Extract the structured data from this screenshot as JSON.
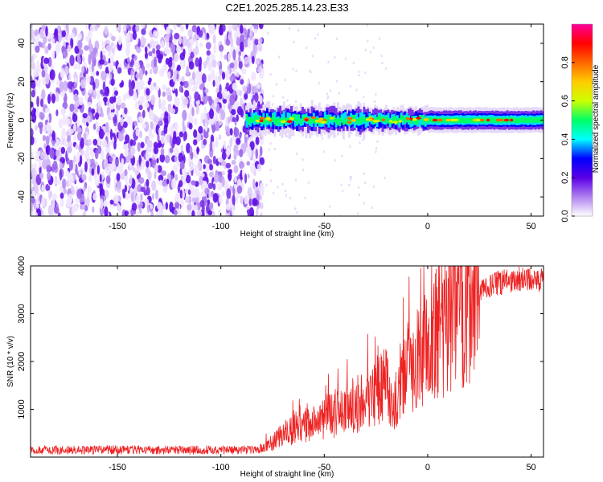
{
  "title": "C2E1.2025.285.14.23.E33",
  "chart_data": [
    {
      "type": "heatmap",
      "name": "spectrogram",
      "xlabel": "Height of straight line (km)",
      "ylabel": "Frequency (Hz)",
      "xlim": [
        -192,
        56
      ],
      "ylim": [
        -50,
        50
      ],
      "xticks": [
        -150,
        -100,
        -50,
        0,
        50
      ],
      "yticks": [
        -40,
        -20,
        0,
        20,
        40
      ],
      "noise_region_x": [
        -192,
        -80
      ],
      "signal_region_x": [
        -88,
        56
      ],
      "signal_center_hz": 0,
      "signal_halfwidth_hz": 3,
      "colorbar": {
        "label": "Normalized spectral amplitude",
        "range": [
          0,
          1
        ],
        "ticks": [
          0.0,
          0.2,
          0.4,
          0.6,
          0.8
        ],
        "tick_labels": [
          "0.0",
          "0.2",
          "0.4",
          "0.6",
          "0.8"
        ],
        "colors": [
          "#ffffff",
          "#b080f0",
          "#5a00e6",
          "#0000ff",
          "#00ffff",
          "#00ff66",
          "#ccff00",
          "#ffcc00",
          "#ff6600",
          "#ff0000",
          "#ff0099"
        ]
      }
    },
    {
      "type": "line",
      "name": "snr",
      "xlabel": "Height of straight line (km)",
      "ylabel": "SNR (10 * v/v)",
      "xlim": [
        -192,
        56
      ],
      "ylim": [
        0,
        4000
      ],
      "xticks": [
        -150,
        -100,
        -50,
        0,
        50
      ],
      "yticks": [
        1000,
        2000,
        3000,
        4000
      ],
      "color": "#ee2222",
      "series_profile": {
        "x": [
          -192,
          -82,
          -75,
          -70,
          -60,
          -50,
          -40,
          -30,
          -20,
          -18,
          -10,
          -5,
          0,
          10,
          20,
          30,
          40,
          50,
          56
        ],
        "y": [
          150,
          150,
          300,
          500,
          650,
          800,
          1000,
          1200,
          1500,
          1000,
          1900,
          2100,
          2300,
          2900,
          3300,
          3600,
          3700,
          3750,
          3700
        ]
      }
    }
  ]
}
